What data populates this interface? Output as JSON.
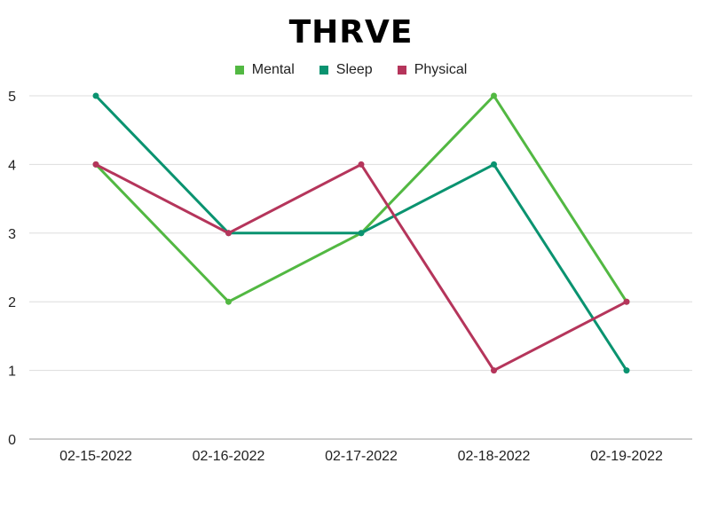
{
  "chart_data": {
    "type": "line",
    "title": "THRVE",
    "xlabel": "",
    "ylabel": "",
    "categories": [
      "02-15-2022",
      "02-16-2022",
      "02-17-2022",
      "02-18-2022",
      "02-19-2022"
    ],
    "series": [
      {
        "name": "Mental",
        "color": "#52b842",
        "values": [
          4,
          2,
          3,
          5,
          2
        ]
      },
      {
        "name": "Sleep",
        "color": "#0a9370",
        "values": [
          5,
          3,
          3,
          4,
          1
        ]
      },
      {
        "name": "Physical",
        "color": "#b5355b",
        "values": [
          4,
          3,
          4,
          1,
          2
        ]
      }
    ],
    "ylim": [
      0,
      5
    ],
    "yticks": [
      0,
      1,
      2,
      3,
      4,
      5
    ],
    "grid": true,
    "legend_position": "top-center"
  }
}
